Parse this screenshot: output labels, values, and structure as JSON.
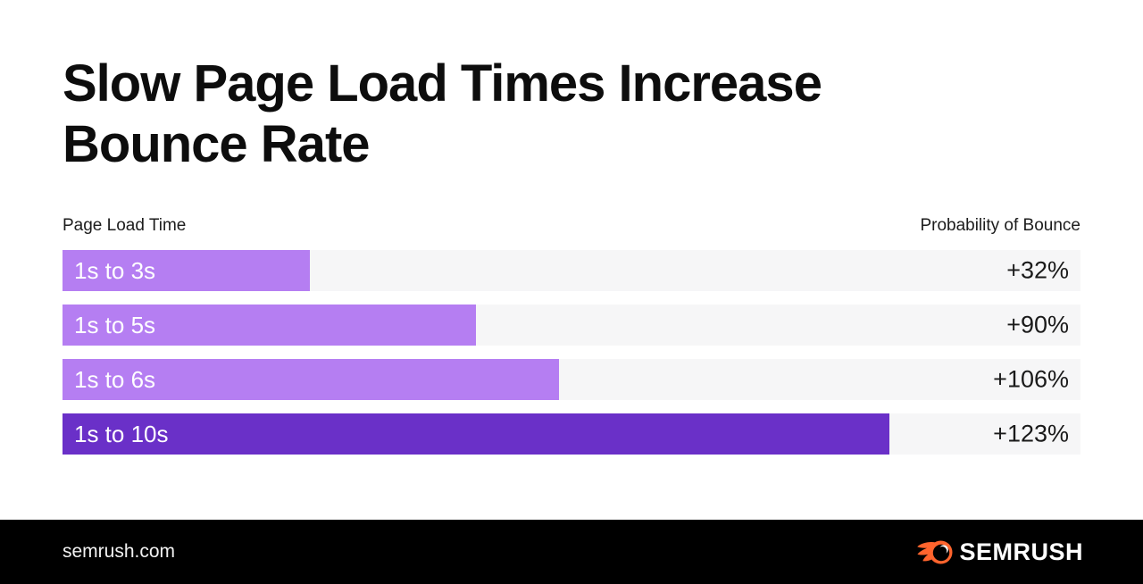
{
  "title": "Slow Page Load Times Increase Bounce Rate",
  "chart_data": {
    "type": "bar",
    "orientation": "horizontal",
    "title": "Slow Page Load Times Increase Bounce Rate",
    "axis_left_label": "Page Load Time",
    "axis_right_label": "Probability of Bounce",
    "categories": [
      "1s to 3s",
      "1s to 5s",
      "1s to 6s",
      "1s to 10s"
    ],
    "values": [
      32,
      90,
      106,
      123
    ],
    "value_labels": [
      "+32%",
      "+90%",
      "+106%",
      "+123%"
    ],
    "bar_seconds": [
      3,
      5,
      6,
      10
    ],
    "grid": false,
    "legend": "none",
    "rows": [
      {
        "label": "1s to 3s",
        "value_label": "+32%",
        "seconds": 3,
        "width_pct": 24.3,
        "fill_color": "#b57ef2"
      },
      {
        "label": "1s to 5s",
        "value_label": "+90%",
        "seconds": 5,
        "width_pct": 40.6,
        "fill_color": "#b57ef2"
      },
      {
        "label": "1s to 6s",
        "value_label": "+106%",
        "seconds": 6,
        "width_pct": 48.8,
        "fill_color": "#b57ef2"
      },
      {
        "label": "1s to 10s",
        "value_label": "+123%",
        "seconds": 10,
        "width_pct": 81.2,
        "fill_color": "#6a30c8"
      }
    ],
    "colors": {
      "bar_light_purple": "#b57ef2",
      "bar_dark_purple": "#6a30c8",
      "track_gray": "#f6f6f7",
      "title_text": "#0d0d0d"
    }
  },
  "footer": {
    "site": "semrush.com",
    "brand_wordmark": "SEMRUSH",
    "background": "#000000",
    "logo_orange": "#ff642d"
  }
}
